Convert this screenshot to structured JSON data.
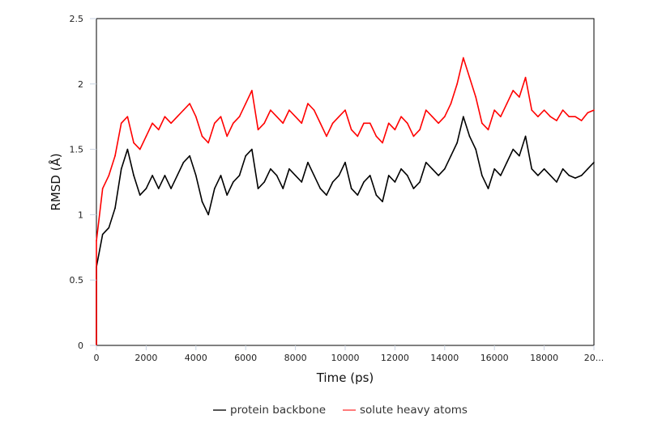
{
  "chart_data": {
    "type": "line",
    "xlabel": "Time (ps)",
    "ylabel": "RMSD (Å)",
    "xlim": [
      0,
      20000
    ],
    "ylim": [
      0,
      2.5
    ],
    "grid": false,
    "legend_position": "bottom",
    "x_ticks": [
      "0",
      "2000",
      "4000",
      "6000",
      "8000",
      "10000",
      "12000",
      "14000",
      "16000",
      "18000",
      "20..."
    ],
    "y_ticks": [
      "0",
      "0.5",
      "1",
      "1.5",
      "2",
      "2.5"
    ],
    "x": [
      0,
      250,
      500,
      750,
      1000,
      1250,
      1500,
      1750,
      2000,
      2250,
      2500,
      2750,
      3000,
      3250,
      3500,
      3750,
      4000,
      4250,
      4500,
      4750,
      5000,
      5250,
      5500,
      5750,
      6000,
      6250,
      6500,
      6750,
      7000,
      7250,
      7500,
      7750,
      8000,
      8250,
      8500,
      8750,
      9000,
      9250,
      9500,
      9750,
      10000,
      10250,
      10500,
      10750,
      11000,
      11250,
      11500,
      11750,
      12000,
      12250,
      12500,
      12750,
      13000,
      13250,
      13500,
      13750,
      14000,
      14250,
      14500,
      14750,
      15000,
      15250,
      15500,
      15750,
      16000,
      16250,
      16500,
      16750,
      17000,
      17250,
      17500,
      17750,
      18000,
      18250,
      18500,
      18750,
      19000,
      19250,
      19500,
      19750,
      20000
    ],
    "series": [
      {
        "name": "protein backbone",
        "color": "#000000",
        "values": [
          0.6,
          0.85,
          0.9,
          1.05,
          1.35,
          1.5,
          1.3,
          1.15,
          1.2,
          1.3,
          1.2,
          1.3,
          1.2,
          1.3,
          1.4,
          1.45,
          1.3,
          1.1,
          1.0,
          1.2,
          1.3,
          1.15,
          1.25,
          1.3,
          1.45,
          1.5,
          1.2,
          1.25,
          1.35,
          1.3,
          1.2,
          1.35,
          1.3,
          1.25,
          1.4,
          1.3,
          1.2,
          1.15,
          1.25,
          1.3,
          1.4,
          1.2,
          1.15,
          1.25,
          1.3,
          1.15,
          1.1,
          1.3,
          1.25,
          1.35,
          1.3,
          1.2,
          1.25,
          1.4,
          1.35,
          1.3,
          1.35,
          1.45,
          1.55,
          1.75,
          1.6,
          1.5,
          1.3,
          1.2,
          1.35,
          1.3,
          1.4,
          1.5,
          1.45,
          1.6,
          1.35,
          1.3,
          1.35,
          1.3,
          1.25,
          1.35,
          1.3,
          1.28,
          1.3,
          1.35,
          1.4
        ]
      },
      {
        "name": "solute heavy atoms",
        "color": "#ff0000",
        "values": [
          0.8,
          1.2,
          1.3,
          1.45,
          1.7,
          1.75,
          1.55,
          1.5,
          1.6,
          1.7,
          1.65,
          1.75,
          1.7,
          1.75,
          1.8,
          1.85,
          1.75,
          1.6,
          1.55,
          1.7,
          1.75,
          1.6,
          1.7,
          1.75,
          1.85,
          1.95,
          1.65,
          1.7,
          1.8,
          1.75,
          1.7,
          1.8,
          1.75,
          1.7,
          1.85,
          1.8,
          1.7,
          1.6,
          1.7,
          1.75,
          1.8,
          1.65,
          1.6,
          1.7,
          1.7,
          1.6,
          1.55,
          1.7,
          1.65,
          1.75,
          1.7,
          1.6,
          1.65,
          1.8,
          1.75,
          1.7,
          1.75,
          1.85,
          2.0,
          2.2,
          2.05,
          1.9,
          1.7,
          1.65,
          1.8,
          1.75,
          1.85,
          1.95,
          1.9,
          2.05,
          1.8,
          1.75,
          1.8,
          1.75,
          1.72,
          1.8,
          1.75,
          1.75,
          1.72,
          1.78,
          1.8
        ]
      }
    ]
  }
}
